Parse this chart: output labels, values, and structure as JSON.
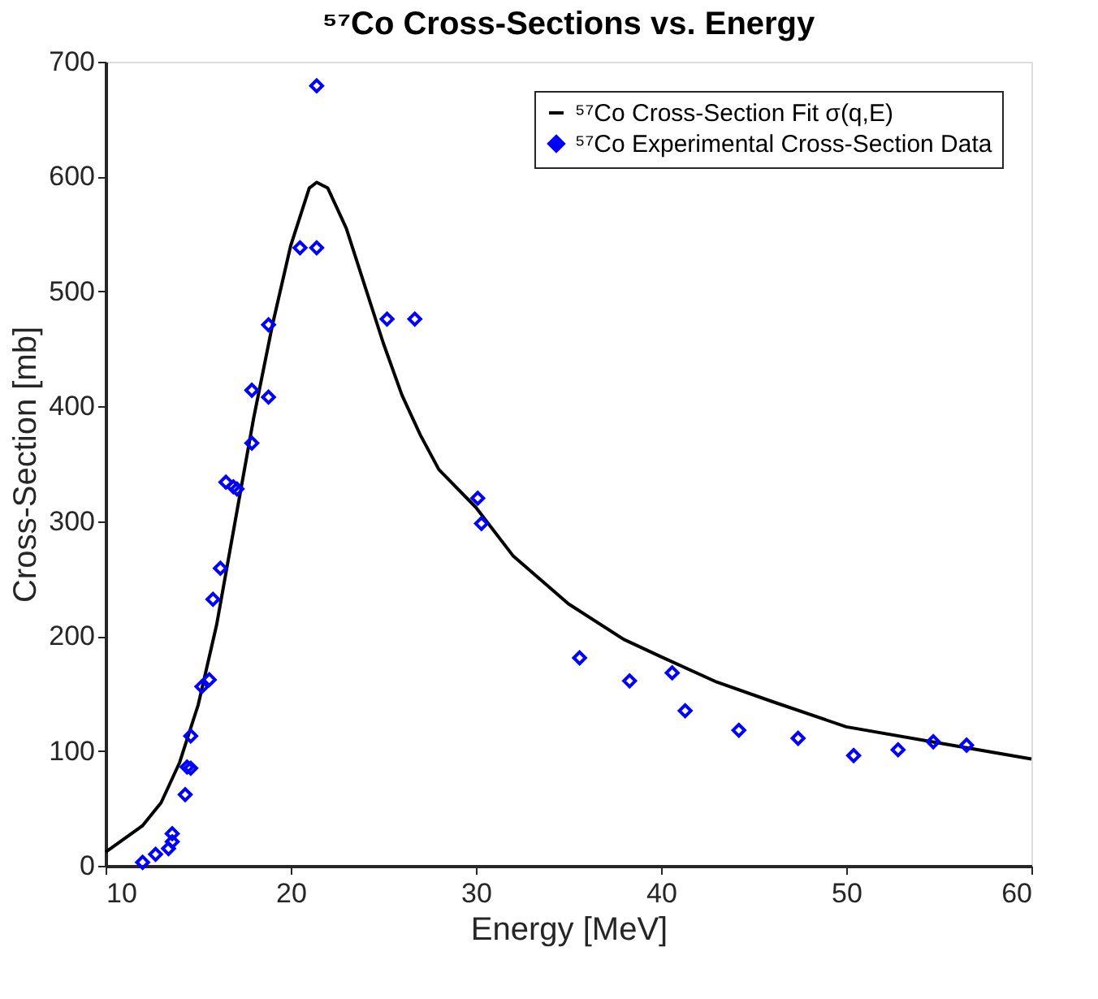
{
  "chart_data": {
    "type": "scatter",
    "title": "⁵⁷Co Cross-Sections vs. Energy",
    "xlabel": "Energy [MeV]",
    "ylabel": "Cross-Section [mb]",
    "xlim": [
      10,
      60
    ],
    "xticks": [
      10,
      20,
      30,
      40,
      50,
      60
    ],
    "ylim": [
      0,
      700
    ],
    "yticks": [
      0,
      100,
      200,
      300,
      400,
      500,
      600,
      700
    ],
    "grid": false,
    "legend": "top right",
    "series": [
      {
        "name": "⁵⁷Co Cross-Section Fit σ(q,E)",
        "type": "line",
        "color": "#000000",
        "marker": "none",
        "line_style": "solid",
        "x": [
          10,
          12,
          13,
          14,
          15,
          16,
          17,
          18,
          19,
          20,
          21,
          21.4,
          22,
          23,
          24,
          25,
          26,
          27,
          28,
          30,
          32,
          35,
          38,
          40,
          43,
          46,
          50,
          55,
          60
        ],
        "values": [
          12,
          35,
          55,
          90,
          140,
          210,
          300,
          390,
          470,
          540,
          590,
          595,
          590,
          555,
          505,
          455,
          410,
          375,
          345,
          312,
          270,
          228,
          197,
          182,
          160,
          143,
          121,
          107,
          93
        ]
      },
      {
        "name": "⁵⁷Co Experimental Cross-Section Data",
        "color": "#0000ff",
        "marker": "diamond",
        "x": [
          12.0,
          12.7,
          13.4,
          13.6,
          13.6,
          14.3,
          14.4,
          14.6,
          14.6,
          15.2,
          15.6,
          15.8,
          16.2,
          16.5,
          16.9,
          17.1,
          17.9,
          17.9,
          18.8,
          18.8,
          20.5,
          21.4,
          21.4,
          25.2,
          26.7,
          30.1,
          30.3,
          35.6,
          38.3,
          40.6,
          41.3,
          44.2,
          47.4,
          50.4,
          52.8,
          54.7,
          56.5
        ],
        "values": [
          3,
          10,
          15,
          21,
          28,
          62,
          86,
          85,
          113,
          156,
          162,
          232,
          259,
          334,
          330,
          328,
          368,
          414,
          408,
          471,
          538,
          538,
          679,
          476,
          476,
          320,
          298,
          181,
          161,
          168,
          135,
          118,
          111,
          96,
          101,
          108,
          105
        ]
      }
    ]
  }
}
